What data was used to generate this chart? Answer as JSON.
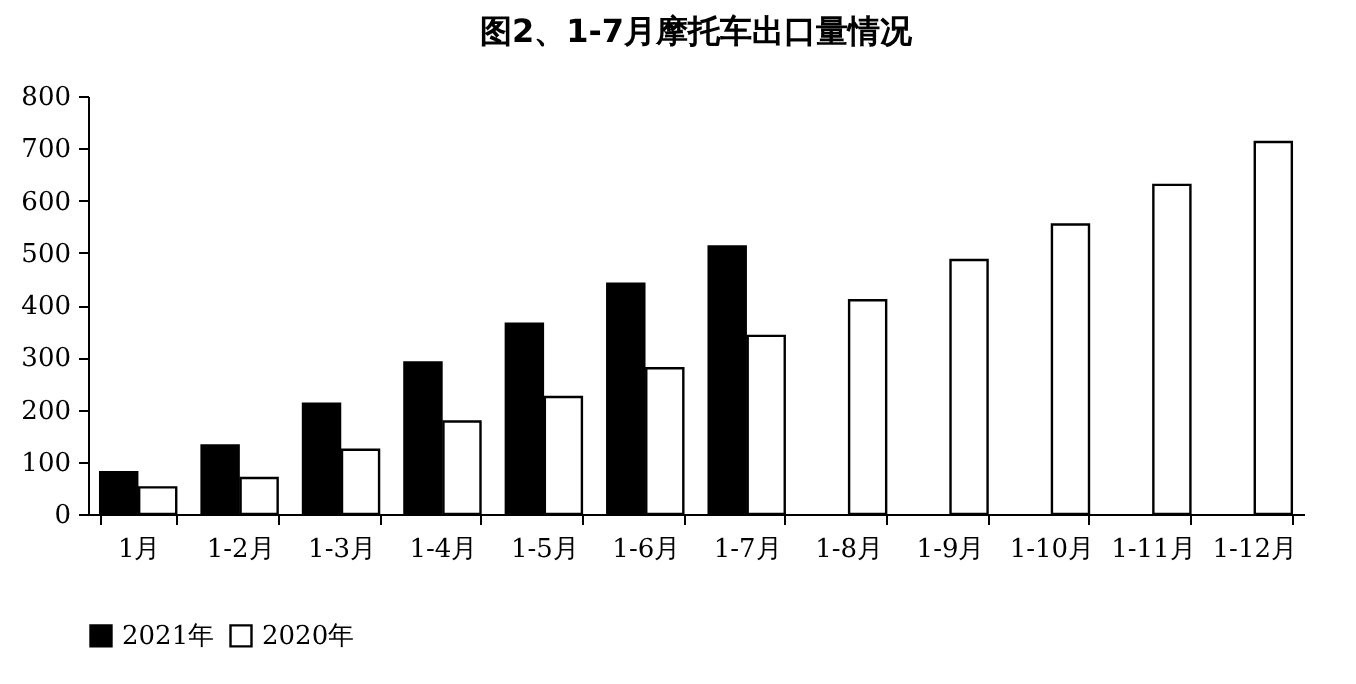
{
  "chart_data": {
    "type": "bar",
    "title": "图2、1-7月摩托车出口量情况",
    "categories": [
      "1月",
      "1-2月",
      "1-3月",
      "1-4月",
      "1-5月",
      "1-6月",
      "1-7月",
      "1-8月",
      "1-9月",
      "1-10月",
      "1-11月",
      "1-12月"
    ],
    "series": [
      {
        "name": "2021年",
        "color": "#000000",
        "values": [
          80,
          131,
          211,
          290,
          364,
          441,
          512,
          null,
          null,
          null,
          null,
          null
        ]
      },
      {
        "name": "2020年",
        "color": "#ffffff",
        "values": [
          51,
          69,
          123,
          177,
          224,
          279,
          341,
          409,
          486,
          554,
          630,
          712
        ]
      }
    ],
    "ylim": [
      0,
      800
    ],
    "yticks": [
      0,
      100,
      200,
      300,
      400,
      500,
      600,
      700,
      800
    ],
    "grid": false,
    "legend": "bottom"
  }
}
